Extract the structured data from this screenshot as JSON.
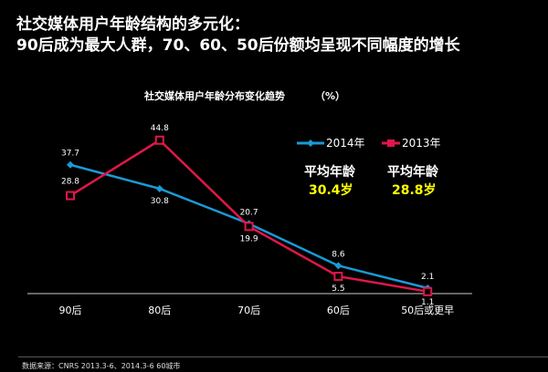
{
  "slide": {
    "title_line1": "社交媒体用户年龄结构的多元化：",
    "title_line2": "90后成为最大人群，70、60、50后份额均呈现不同幅度的增长",
    "footer": "数据来源：CNRS 2013.3-6、2014.3-6  60城市"
  },
  "averages": [
    {
      "label": "平均年龄",
      "value": "30.4岁"
    },
    {
      "label": "平均年龄",
      "value": "28.8岁"
    }
  ],
  "chart_data": {
    "type": "line",
    "title": "社交媒体用户年龄分布变化趋势",
    "unit": "（%）",
    "categories": [
      "90后",
      "80后",
      "70后",
      "60后",
      "50后或更早"
    ],
    "series": [
      {
        "name": "2014年",
        "values": [
          37.7,
          30.8,
          20.7,
          8.6,
          2.1
        ],
        "color": "#1a9ad6",
        "marker": "diamond"
      },
      {
        "name": "2013年",
        "values": [
          28.8,
          44.8,
          19.9,
          5.5,
          1.1
        ],
        "color": "#e0174a",
        "marker": "square"
      }
    ],
    "ylim": [
      0,
      50
    ],
    "grid": false,
    "legend": "top-right"
  }
}
